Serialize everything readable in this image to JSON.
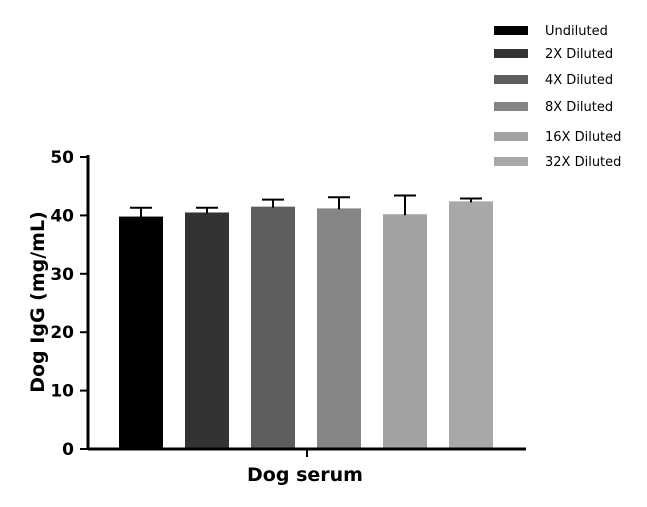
{
  "chart_data": {
    "type": "bar",
    "categories": [
      "Dog serum"
    ],
    "xlabel": "Dog serum",
    "ylabel": "Dog IgG (mg/mL)",
    "ylim": [
      0,
      50
    ],
    "yticks": [
      0,
      10,
      20,
      30,
      40,
      50
    ],
    "grid": false,
    "legend_position": "top-right",
    "error_bars": true,
    "series": [
      {
        "name": "Undiluted",
        "values": [
          39.8
        ],
        "error": [
          1.5
        ],
        "color": "#000000"
      },
      {
        "name": "2X Diluted",
        "values": [
          40.5
        ],
        "error": [
          0.8
        ],
        "color": "#333333"
      },
      {
        "name": "4X Diluted",
        "values": [
          41.5
        ],
        "error": [
          1.2
        ],
        "color": "#5e5e5e"
      },
      {
        "name": "8X Diluted",
        "values": [
          41.2
        ],
        "error": [
          1.9
        ],
        "color": "#858585"
      },
      {
        "name": "16X Diluted",
        "values": [
          40.2
        ],
        "error": [
          3.2
        ],
        "color": "#a2a2a2"
      },
      {
        "name": "32X Diluted",
        "values": [
          42.4
        ],
        "error": [
          0.5
        ],
        "color": "#a8a8a8"
      }
    ]
  }
}
